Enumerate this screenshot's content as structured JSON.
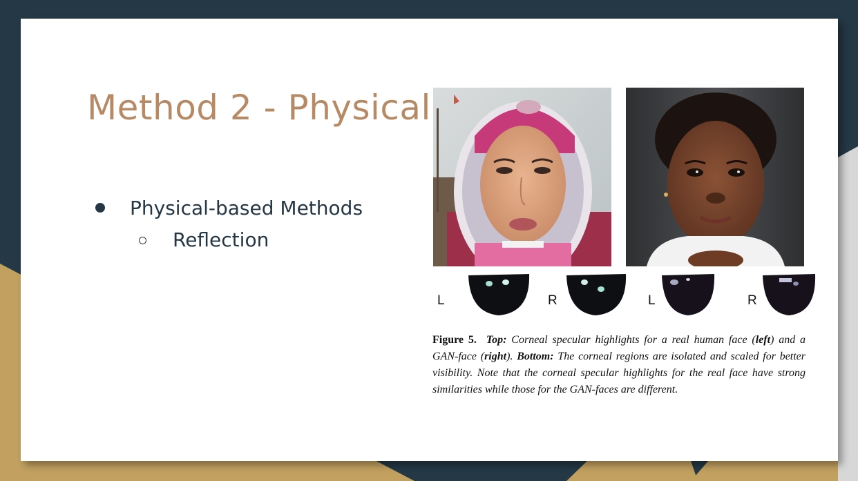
{
  "slide": {
    "title": "Method 2 - Physical",
    "bullets": [
      {
        "label": "Physical-based Methods",
        "level": 1
      },
      {
        "label": "Reflection",
        "level": 2
      }
    ]
  },
  "figure": {
    "eye_labels": {
      "left": "L",
      "right": "R"
    },
    "caption": {
      "fig_label": "Figure 5.",
      "top_label": "Top:",
      "part1": " Corneal specular highlights for a real human face (",
      "left_word": "left",
      "part2": ") and a GAN-face (",
      "right_word": "right",
      "part3": "). ",
      "bottom_label": "Bottom:",
      "part4": " The corneal regions are isolated and scaled for better visibility. Note that the corneal specular highlights for the real face have strong similarities while those for the GAN-faces are different."
    }
  },
  "colors": {
    "background_dark": "#243846",
    "accent_gold": "#c2a060",
    "title": "#b68a64",
    "body_text": "#253745"
  }
}
